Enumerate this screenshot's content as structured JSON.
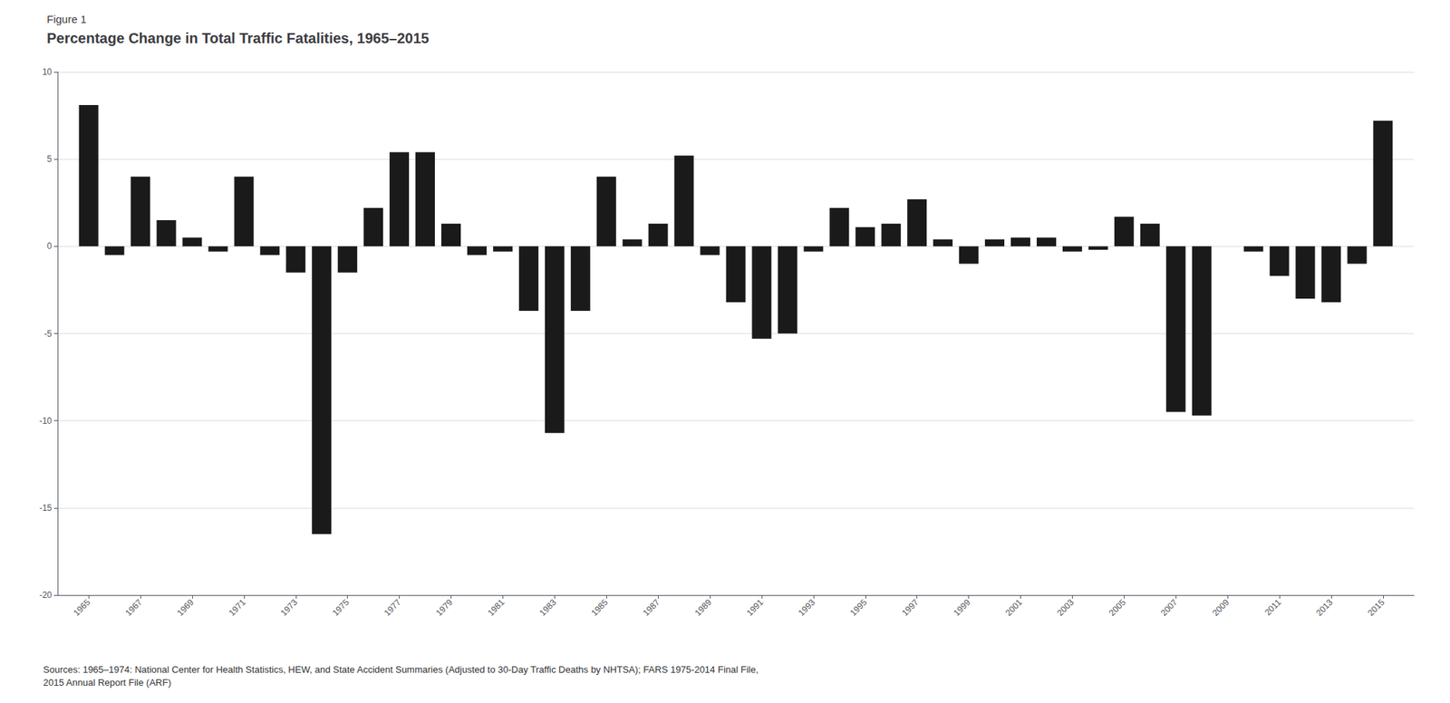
{
  "chart_data": {
    "type": "bar",
    "subtitle": "Figure 1",
    "title": "Percentage Change in Total Traffic Fatalities, 1965–2015",
    "x": [
      1965,
      1966,
      1967,
      1968,
      1969,
      1970,
      1971,
      1972,
      1973,
      1974,
      1975,
      1976,
      1977,
      1978,
      1979,
      1980,
      1981,
      1982,
      1983,
      1984,
      1985,
      1986,
      1987,
      1988,
      1989,
      1990,
      1991,
      1992,
      1993,
      1994,
      1995,
      1996,
      1997,
      1998,
      1999,
      2000,
      2001,
      2002,
      2003,
      2004,
      2005,
      2006,
      2007,
      2008,
      2009,
      2010,
      2011,
      2012,
      2013,
      2014,
      2015
    ],
    "values": [
      8.1,
      -0.5,
      4.0,
      1.5,
      0.5,
      -0.3,
      4.0,
      -0.5,
      -1.5,
      -16.5,
      -1.5,
      2.2,
      5.4,
      5.4,
      1.3,
      -0.5,
      -0.3,
      -3.7,
      -10.7,
      -3.7,
      4.0,
      0.4,
      1.3,
      5.2,
      -0.5,
      -3.2,
      -5.3,
      -5.0,
      -0.3,
      2.2,
      1.1,
      1.3,
      2.7,
      0.4,
      -1.0,
      0.4,
      0.5,
      0.5,
      -0.3,
      -0.2,
      1.7,
      1.3,
      -9.5,
      -9.7,
      0.0,
      -0.3,
      -1.7,
      -3.0,
      -3.2,
      -1.0,
      7.2
    ],
    "color": "#1a1a1a",
    "xlim": [
      1963.8,
      2016.2
    ],
    "xticks": [
      1965,
      1967,
      1969,
      1971,
      1973,
      1975,
      1977,
      1979,
      1981,
      1983,
      1985,
      1987,
      1989,
      1991,
      1993,
      1995,
      1997,
      1999,
      2001,
      2003,
      2005,
      2007,
      2009,
      2011,
      2013,
      2015
    ],
    "ylim": [
      -20,
      10
    ],
    "yticks": [
      -20,
      -15,
      -10,
      -5,
      0,
      5,
      10
    ],
    "grid": true,
    "annotations": [
      "Sources: 1965–1974: National Center for Health Statistics, HEW, and State Accident Summaries (Adjusted to 30-Day Traffic Deaths by NHTSA); FARS 1975-2014 Final File,\n2015 Annual Report File (ARF)"
    ]
  }
}
